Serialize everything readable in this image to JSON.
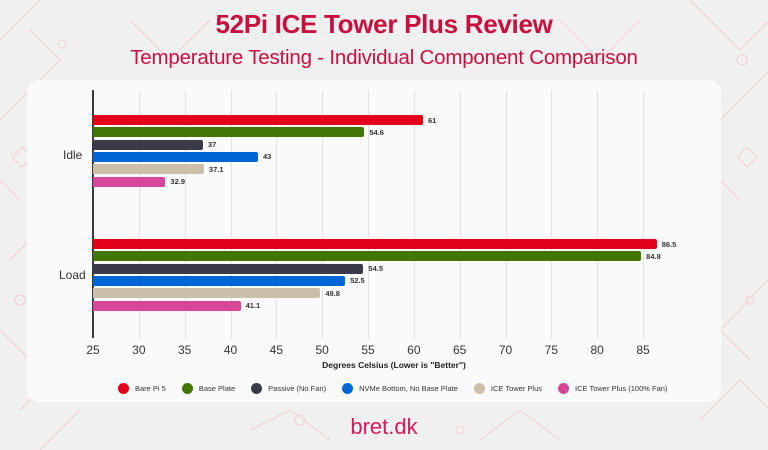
{
  "header": {
    "title": "52Pi ICE Tower Plus Review",
    "subtitle": "Temperature Testing - Individual Component Comparison"
  },
  "footer": {
    "brand": "bret.dk"
  },
  "colors": {
    "accent": "#c8103e",
    "Bare Pi 5": "#e2001a",
    "Base Plate": "#417505",
    "Passive (No Fan)": "#3a3a48",
    "NVMe Bottom, No Base Plate": "#0066d6",
    "ICE Tower Plus": "#cbbfaa",
    "ICE Tower Plus (100% Fan)": "#d64797"
  },
  "chart_data": {
    "type": "bar",
    "orientation": "horizontal",
    "title": "52Pi ICE Tower Plus Review",
    "subtitle": "Temperature Testing - Individual Component Comparison",
    "categories": [
      "Idle",
      "Load"
    ],
    "series": [
      {
        "name": "Bare Pi 5",
        "color": "#e2001a",
        "values": [
          61,
          86.5
        ]
      },
      {
        "name": "Base Plate",
        "color": "#417505",
        "values": [
          54.6,
          84.8
        ]
      },
      {
        "name": "Passive (No Fan)",
        "color": "#3a3a48",
        "values": [
          37,
          54.5
        ]
      },
      {
        "name": "NVMe Bottom, No Base Plate",
        "color": "#0066d6",
        "values": [
          43,
          52.5
        ]
      },
      {
        "name": "ICE Tower Plus",
        "color": "#cbbfaa",
        "values": [
          37.1,
          49.8
        ]
      },
      {
        "name": "ICE Tower Plus (100% Fan)",
        "color": "#d64797",
        "values": [
          32.9,
          41.1
        ]
      }
    ],
    "xlabel": "Degrees Celsius (Lower is \"Better\")",
    "ylabel": "",
    "xlim": [
      25,
      90
    ],
    "xticks": [
      25,
      30,
      35,
      40,
      45,
      50,
      55,
      60,
      65,
      70,
      75,
      80,
      85
    ],
    "grid": true,
    "legend_position": "bottom",
    "data_labels": true
  }
}
